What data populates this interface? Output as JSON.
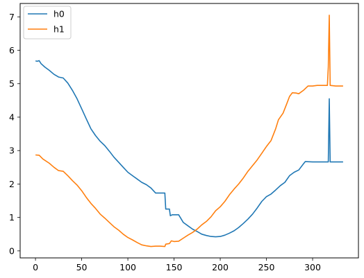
{
  "chart_data": {
    "type": "line",
    "title": "",
    "xlabel": "",
    "ylabel": "",
    "xlim": [
      -16.6,
      349.6
    ],
    "ylim": [
      -0.21,
      7.4
    ],
    "xticks": [
      0,
      50,
      100,
      150,
      200,
      250,
      300
    ],
    "yticks": [
      0,
      1,
      2,
      3,
      4,
      5,
      6,
      7
    ],
    "grid": false,
    "legend": "top-left",
    "series": [
      {
        "name": "h0",
        "color": "#1f77b4",
        "points": [
          [
            0,
            5.68
          ],
          [
            2,
            5.67
          ],
          [
            4,
            5.69
          ],
          [
            6,
            5.6
          ],
          [
            10,
            5.5
          ],
          [
            15,
            5.4
          ],
          [
            20,
            5.28
          ],
          [
            25,
            5.2
          ],
          [
            30,
            5.17
          ],
          [
            35,
            5.02
          ],
          [
            40,
            4.8
          ],
          [
            45,
            4.55
          ],
          [
            50,
            4.25
          ],
          [
            55,
            3.95
          ],
          [
            60,
            3.65
          ],
          [
            65,
            3.45
          ],
          [
            70,
            3.28
          ],
          [
            75,
            3.15
          ],
          [
            80,
            2.98
          ],
          [
            85,
            2.8
          ],
          [
            90,
            2.65
          ],
          [
            95,
            2.5
          ],
          [
            100,
            2.35
          ],
          [
            105,
            2.25
          ],
          [
            110,
            2.15
          ],
          [
            115,
            2.05
          ],
          [
            120,
            1.98
          ],
          [
            125,
            1.88
          ],
          [
            130,
            1.73
          ],
          [
            140,
            1.73
          ],
          [
            141,
            1.25
          ],
          [
            145,
            1.25
          ],
          [
            146,
            1.05
          ],
          [
            148,
            1.08
          ],
          [
            155,
            1.08
          ],
          [
            160,
            0.85
          ],
          [
            165,
            0.75
          ],
          [
            170,
            0.65
          ],
          [
            175,
            0.58
          ],
          [
            180,
            0.5
          ],
          [
            185,
            0.46
          ],
          [
            190,
            0.43
          ],
          [
            195,
            0.42
          ],
          [
            200,
            0.43
          ],
          [
            205,
            0.47
          ],
          [
            210,
            0.53
          ],
          [
            215,
            0.6
          ],
          [
            220,
            0.7
          ],
          [
            225,
            0.82
          ],
          [
            230,
            0.95
          ],
          [
            235,
            1.1
          ],
          [
            240,
            1.28
          ],
          [
            245,
            1.48
          ],
          [
            250,
            1.62
          ],
          [
            255,
            1.7
          ],
          [
            260,
            1.82
          ],
          [
            265,
            1.95
          ],
          [
            270,
            2.05
          ],
          [
            275,
            2.25
          ],
          [
            280,
            2.35
          ],
          [
            285,
            2.42
          ],
          [
            290,
            2.6
          ],
          [
            292,
            2.67
          ],
          [
            300,
            2.66
          ],
          [
            310,
            2.66
          ],
          [
            317,
            2.66
          ],
          [
            318,
            4.55
          ],
          [
            319,
            2.66
          ],
          [
            325,
            2.66
          ],
          [
            333,
            2.66
          ]
        ]
      },
      {
        "name": "h1",
        "color": "#ff7f0e",
        "points": [
          [
            0,
            2.87
          ],
          [
            4,
            2.86
          ],
          [
            8,
            2.75
          ],
          [
            15,
            2.62
          ],
          [
            20,
            2.5
          ],
          [
            25,
            2.4
          ],
          [
            30,
            2.38
          ],
          [
            35,
            2.25
          ],
          [
            40,
            2.1
          ],
          [
            45,
            1.97
          ],
          [
            50,
            1.8
          ],
          [
            55,
            1.6
          ],
          [
            60,
            1.42
          ],
          [
            65,
            1.27
          ],
          [
            70,
            1.1
          ],
          [
            75,
            0.98
          ],
          [
            80,
            0.85
          ],
          [
            85,
            0.72
          ],
          [
            90,
            0.62
          ],
          [
            95,
            0.5
          ],
          [
            100,
            0.4
          ],
          [
            105,
            0.33
          ],
          [
            110,
            0.25
          ],
          [
            115,
            0.18
          ],
          [
            120,
            0.15
          ],
          [
            125,
            0.13
          ],
          [
            130,
            0.14
          ],
          [
            135,
            0.14
          ],
          [
            140,
            0.13
          ],
          [
            141,
            0.2
          ],
          [
            145,
            0.22
          ],
          [
            147,
            0.3
          ],
          [
            150,
            0.28
          ],
          [
            155,
            0.29
          ],
          [
            160,
            0.38
          ],
          [
            165,
            0.47
          ],
          [
            170,
            0.55
          ],
          [
            175,
            0.65
          ],
          [
            180,
            0.78
          ],
          [
            185,
            0.88
          ],
          [
            190,
            1.02
          ],
          [
            195,
            1.2
          ],
          [
            200,
            1.32
          ],
          [
            205,
            1.48
          ],
          [
            210,
            1.68
          ],
          [
            215,
            1.85
          ],
          [
            220,
            2.0
          ],
          [
            225,
            2.18
          ],
          [
            230,
            2.38
          ],
          [
            235,
            2.55
          ],
          [
            240,
            2.72
          ],
          [
            245,
            2.92
          ],
          [
            250,
            3.12
          ],
          [
            255,
            3.3
          ],
          [
            260,
            3.65
          ],
          [
            263,
            3.92
          ],
          [
            268,
            4.12
          ],
          [
            272,
            4.4
          ],
          [
            275,
            4.62
          ],
          [
            278,
            4.73
          ],
          [
            282,
            4.72
          ],
          [
            285,
            4.7
          ],
          [
            290,
            4.8
          ],
          [
            295,
            4.93
          ],
          [
            300,
            4.93
          ],
          [
            305,
            4.95
          ],
          [
            310,
            4.95
          ],
          [
            316,
            4.95
          ],
          [
            317,
            5.5
          ],
          [
            318,
            7.05
          ],
          [
            319,
            4.95
          ],
          [
            325,
            4.93
          ],
          [
            333,
            4.93
          ]
        ]
      }
    ]
  }
}
